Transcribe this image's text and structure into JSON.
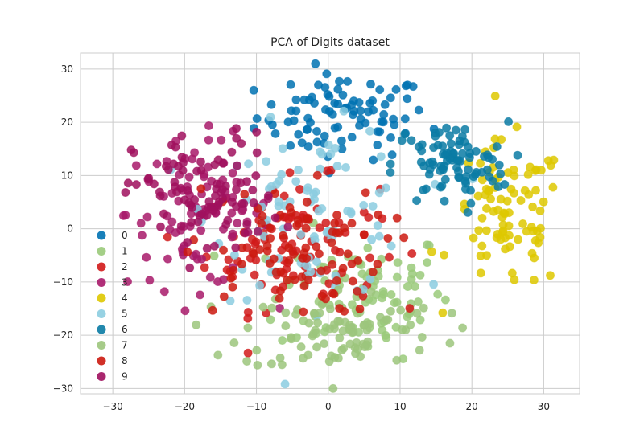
{
  "chart_data": {
    "type": "scatter",
    "title": "PCA of Digits dataset",
    "xlabel": "",
    "ylabel": "",
    "xlim": [
      -34.5,
      35
    ],
    "ylim": [
      -31,
      33
    ],
    "xticks": [
      -30,
      -20,
      -10,
      0,
      10,
      20,
      30
    ],
    "yticks": [
      -30,
      -20,
      -10,
      0,
      10,
      20,
      30
    ],
    "grid": true,
    "legend_position": "center-left",
    "series": [
      {
        "name": "0",
        "color": "#0072B2",
        "cluster": {
          "cx": 2,
          "cy": 21,
          "sx": 6,
          "sy": 4,
          "n": 90
        }
      },
      {
        "name": "1",
        "color": "#9ACA7A",
        "cluster": {
          "cx": 5,
          "cy": -12,
          "sx": 6,
          "sy": 6,
          "n": 90
        }
      },
      {
        "name": "2",
        "color": "#D11A1A",
        "cluster": {
          "cx": -5,
          "cy": -3,
          "sx": 6,
          "sy": 6,
          "n": 90
        }
      },
      {
        "name": "3",
        "color": "#A81A6A",
        "cluster": {
          "cx": -18,
          "cy": 3,
          "sx": 5,
          "sy": 7,
          "n": 90
        }
      },
      {
        "name": "4",
        "color": "#DEC800",
        "cluster": {
          "cx": 25,
          "cy": 2,
          "sx": 4,
          "sy": 7,
          "n": 90
        }
      },
      {
        "name": "5",
        "color": "#8CCDE0",
        "cluster": {
          "cx": -2,
          "cy": 3,
          "sx": 7,
          "sy": 8,
          "n": 90
        }
      },
      {
        "name": "6",
        "color": "#0A7BA4",
        "cluster": {
          "cx": 17,
          "cy": 12,
          "sx": 4,
          "sy": 4,
          "n": 90
        }
      },
      {
        "name": "7",
        "color": "#9CC57C",
        "cluster": {
          "cx": 2,
          "cy": -19,
          "sx": 7,
          "sy": 4,
          "n": 90
        }
      },
      {
        "name": "8",
        "color": "#CC1A10",
        "cluster": {
          "cx": -6,
          "cy": -4,
          "sx": 7,
          "sy": 6,
          "n": 90
        }
      },
      {
        "name": "9",
        "color": "#A0105E",
        "cluster": {
          "cx": -17,
          "cy": 6,
          "sx": 5,
          "sy": 6,
          "n": 90
        }
      }
    ]
  }
}
